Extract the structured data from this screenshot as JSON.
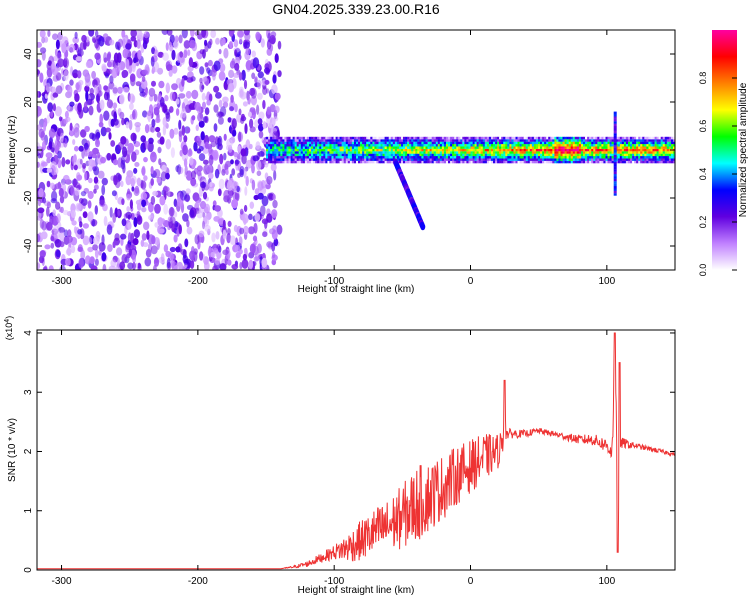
{
  "title": "GN04.2025.339.23.00.R16",
  "chart_data": [
    {
      "type": "heatmap",
      "title": "GN04.2025.339.23.00.R16",
      "xlabel": "Height of straight line (km)",
      "ylabel": "Frequency (Hz)",
      "xlim": [
        -318,
        150
      ],
      "ylim": [
        -50,
        50
      ],
      "x_ticks": [
        -300,
        -200,
        -100,
        0,
        100
      ],
      "y_ticks": [
        -40,
        -20,
        0,
        20,
        40
      ],
      "x_tick_labels": [
        "-300",
        "-200",
        "-100",
        "0",
        "100"
      ],
      "y_tick_labels": [
        "-40",
        "-20",
        "0",
        "20",
        "40"
      ],
      "grid": false,
      "colorbar": {
        "label": "Normalized spectral amplitude",
        "range": [
          0,
          1
        ],
        "ticks": [
          0.0,
          0.2,
          0.4,
          0.6,
          0.8
        ],
        "tick_labels": [
          "0.0",
          "0.2",
          "0.4",
          "0.6",
          "0.8"
        ],
        "colormap": [
          "#ffffff",
          "#c080ff",
          "#6000e0",
          "#0000ff",
          "#00ffff",
          "#00ff00",
          "#ffff00",
          "#ff8000",
          "#ff0000",
          "#ff00a0"
        ]
      },
      "regions": {
        "noise_extent_km": [
          -318,
          -140
        ],
        "signal_band_km": [
          -150,
          150
        ],
        "signal_center_hz": 0,
        "signal_halfwidth_hz": 3,
        "branch_km": [
          -55,
          -35
        ],
        "branch_hz": [
          -5,
          -32
        ],
        "spike_km": 105,
        "spike_hz": [
          -18,
          16
        ]
      }
    },
    {
      "type": "line",
      "xlabel": "Height of straight line (km)",
      "ylabel": "SNR (10 * v/v)",
      "y_multiplier_label": "(x10^4)",
      "xlim": [
        -318,
        150
      ],
      "ylim": [
        0,
        4.05
      ],
      "x_ticks": [
        -300,
        -200,
        -100,
        0,
        100
      ],
      "y_ticks": [
        0,
        1,
        2,
        3,
        4
      ],
      "x_tick_labels": [
        "-300",
        "-200",
        "-100",
        "0",
        "100"
      ],
      "y_tick_labels": [
        "0",
        "1",
        "2",
        "3",
        "4"
      ],
      "grid": false,
      "series": [
        {
          "color": "#ee3333",
          "x": [
            -318,
            -200,
            -140,
            -130,
            -120,
            -110,
            -100,
            -90,
            -80,
            -70,
            -60,
            -50,
            -40,
            -30,
            -20,
            -10,
            0,
            10,
            20,
            24,
            25,
            26,
            30,
            40,
            50,
            60,
            70,
            80,
            90,
            100,
            104,
            106,
            108,
            110,
            120,
            130,
            140,
            150
          ],
          "y": [
            0.02,
            0.02,
            0.02,
            0.05,
            0.1,
            0.2,
            0.3,
            0.38,
            0.5,
            0.65,
            0.75,
            0.9,
            1.1,
            1.25,
            1.4,
            1.6,
            1.75,
            1.9,
            2.0,
            2.2,
            3.2,
            2.3,
            2.3,
            2.3,
            2.35,
            2.3,
            2.25,
            2.2,
            2.2,
            2.1,
            2.0,
            4.0,
            0.3,
            2.15,
            2.1,
            2.05,
            2.0,
            1.95
          ],
          "noise_amplitude": [
            0,
            0,
            0,
            0.02,
            0.05,
            0.08,
            0.12,
            0.25,
            0.35,
            0.4,
            0.45,
            0.55,
            0.65,
            0.6,
            0.55,
            0.5,
            0.45,
            0.4,
            0.3,
            0.2,
            0.1,
            0.1,
            0.08,
            0.06,
            0.05,
            0.05,
            0.06,
            0.08,
            0.1,
            0.12,
            0.2,
            0.5,
            0.5,
            0.1,
            0.05,
            0.04,
            0.04,
            0.03
          ]
        }
      ]
    }
  ]
}
